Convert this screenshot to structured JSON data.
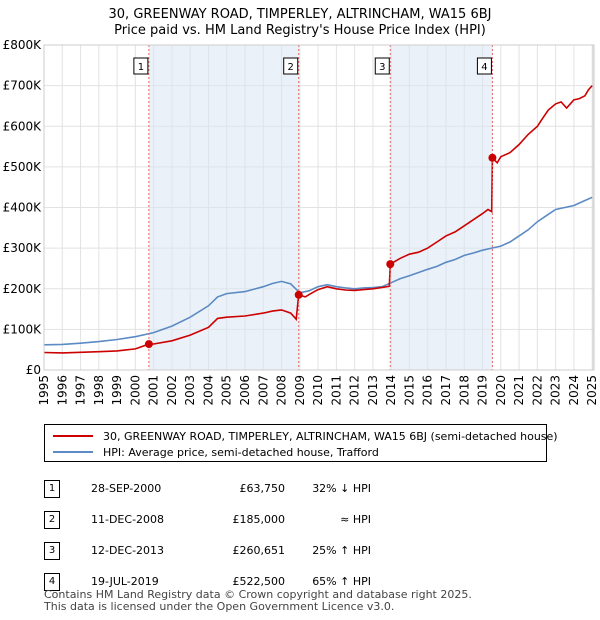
{
  "chart_data": {
    "type": "line",
    "title": "30, GREENWAY ROAD, TIMPERLEY, ALTRINCHAM, WA15 6BJ",
    "subtitle": "Price paid vs. HM Land Registry's House Price Index (HPI)",
    "xlim": [
      1995,
      2025.1
    ],
    "ylim": [
      0,
      800000
    ],
    "y_ticks": [
      {
        "value": 0,
        "label": "£0"
      },
      {
        "value": 100000,
        "label": "£100K"
      },
      {
        "value": 200000,
        "label": "£200K"
      },
      {
        "value": 300000,
        "label": "£300K"
      },
      {
        "value": 400000,
        "label": "£400K"
      },
      {
        "value": 500000,
        "label": "£500K"
      },
      {
        "value": 600000,
        "label": "£600K"
      },
      {
        "value": 700000,
        "label": "£700K"
      },
      {
        "value": 800000,
        "label": "£800K"
      }
    ],
    "x_ticks": [
      "1995",
      "1996",
      "1997",
      "1998",
      "1999",
      "2000",
      "2001",
      "2002",
      "2003",
      "2004",
      "2005",
      "2006",
      "2007",
      "2008",
      "2009",
      "2010",
      "2011",
      "2012",
      "2013",
      "2014",
      "2015",
      "2016",
      "2017",
      "2018",
      "2019",
      "2020",
      "2021",
      "2022",
      "2023",
      "2024",
      "2025"
    ],
    "grid": true,
    "series": [
      {
        "name": "30, GREENWAY ROAD, TIMPERLEY, ALTRINCHAM, WA15 6BJ (semi-detached house)",
        "color": "#cc0000",
        "points": [
          [
            1995.0,
            43000
          ],
          [
            1996.0,
            42000
          ],
          [
            1997.0,
            43500
          ],
          [
            1998.0,
            45000
          ],
          [
            1999.0,
            47000
          ],
          [
            2000.0,
            52000
          ],
          [
            2000.74,
            63750
          ],
          [
            2001.0,
            64000
          ],
          [
            2002.0,
            72000
          ],
          [
            2003.0,
            86000
          ],
          [
            2004.0,
            105000
          ],
          [
            2004.5,
            127000
          ],
          [
            2005.0,
            130000
          ],
          [
            2006.0,
            133000
          ],
          [
            2007.0,
            140000
          ],
          [
            2007.5,
            145000
          ],
          [
            2008.0,
            148000
          ],
          [
            2008.5,
            140000
          ],
          [
            2008.8,
            125000
          ],
          [
            2008.94,
            185000
          ],
          [
            2009.3,
            180000
          ],
          [
            2009.6,
            188000
          ],
          [
            2010.0,
            198000
          ],
          [
            2010.5,
            205000
          ],
          [
            2011.0,
            200000
          ],
          [
            2011.5,
            197000
          ],
          [
            2012.0,
            196000
          ],
          [
            2012.5,
            198000
          ],
          [
            2013.0,
            200000
          ],
          [
            2013.5,
            203000
          ],
          [
            2013.9,
            206000
          ],
          [
            2013.95,
            260651
          ],
          [
            2014.5,
            275000
          ],
          [
            2015.0,
            285000
          ],
          [
            2015.5,
            290000
          ],
          [
            2016.0,
            300000
          ],
          [
            2016.5,
            315000
          ],
          [
            2017.0,
            330000
          ],
          [
            2017.5,
            340000
          ],
          [
            2018.0,
            355000
          ],
          [
            2018.5,
            370000
          ],
          [
            2019.0,
            385000
          ],
          [
            2019.3,
            395000
          ],
          [
            2019.5,
            390000
          ],
          [
            2019.54,
            522500
          ],
          [
            2019.8,
            510000
          ],
          [
            2020.0,
            525000
          ],
          [
            2020.5,
            535000
          ],
          [
            2021.0,
            555000
          ],
          [
            2021.5,
            580000
          ],
          [
            2022.0,
            600000
          ],
          [
            2022.3,
            620000
          ],
          [
            2022.6,
            640000
          ],
          [
            2023.0,
            655000
          ],
          [
            2023.3,
            660000
          ],
          [
            2023.6,
            645000
          ],
          [
            2024.0,
            665000
          ],
          [
            2024.3,
            668000
          ],
          [
            2024.6,
            675000
          ],
          [
            2024.8,
            690000
          ],
          [
            2025.0,
            700000
          ]
        ]
      },
      {
        "name": "HPI: Average price, semi-detached house, Trafford",
        "color": "#5b8ac4",
        "points": [
          [
            1995.0,
            62000
          ],
          [
            1996.0,
            63000
          ],
          [
            1997.0,
            66000
          ],
          [
            1998.0,
            70000
          ],
          [
            1999.0,
            75000
          ],
          [
            2000.0,
            82000
          ],
          [
            2001.0,
            92000
          ],
          [
            2002.0,
            108000
          ],
          [
            2003.0,
            130000
          ],
          [
            2004.0,
            158000
          ],
          [
            2004.5,
            180000
          ],
          [
            2005.0,
            188000
          ],
          [
            2006.0,
            193000
          ],
          [
            2007.0,
            205000
          ],
          [
            2007.5,
            213000
          ],
          [
            2008.0,
            218000
          ],
          [
            2008.5,
            212000
          ],
          [
            2009.0,
            190000
          ],
          [
            2009.5,
            195000
          ],
          [
            2010.0,
            205000
          ],
          [
            2010.5,
            210000
          ],
          [
            2011.0,
            205000
          ],
          [
            2011.5,
            202000
          ],
          [
            2012.0,
            200000
          ],
          [
            2012.5,
            202000
          ],
          [
            2013.0,
            203000
          ],
          [
            2013.5,
            205000
          ],
          [
            2014.0,
            215000
          ],
          [
            2014.5,
            225000
          ],
          [
            2015.0,
            232000
          ],
          [
            2015.5,
            240000
          ],
          [
            2016.0,
            248000
          ],
          [
            2016.5,
            255000
          ],
          [
            2017.0,
            265000
          ],
          [
            2017.5,
            272000
          ],
          [
            2018.0,
            282000
          ],
          [
            2018.5,
            288000
          ],
          [
            2019.0,
            295000
          ],
          [
            2019.5,
            300000
          ],
          [
            2020.0,
            305000
          ],
          [
            2020.5,
            315000
          ],
          [
            2021.0,
            330000
          ],
          [
            2021.5,
            345000
          ],
          [
            2022.0,
            365000
          ],
          [
            2022.5,
            380000
          ],
          [
            2023.0,
            395000
          ],
          [
            2023.5,
            400000
          ],
          [
            2024.0,
            405000
          ],
          [
            2024.5,
            415000
          ],
          [
            2025.0,
            425000
          ]
        ]
      }
    ],
    "sales": [
      {
        "num": "1",
        "x": 2000.74,
        "price": 63750
      },
      {
        "num": "2",
        "x": 2008.94,
        "price": 185000
      },
      {
        "num": "3",
        "x": 2013.95,
        "price": 260651
      },
      {
        "num": "4",
        "x": 2019.54,
        "price": 522500
      }
    ]
  },
  "legend": {
    "property": "30, GREENWAY ROAD, TIMPERLEY, ALTRINCHAM, WA15 6BJ (semi-detached house)",
    "hpi": "HPI: Average price, semi-detached house, Trafford",
    "property_color": "#cc0000",
    "hpi_color": "#5b8ac4"
  },
  "transactions": [
    {
      "num": "1",
      "date": "28-SEP-2000",
      "price": "£63,750",
      "hpi": "32% ↓ HPI"
    },
    {
      "num": "2",
      "date": "11-DEC-2008",
      "price": "£185,000",
      "hpi": "≈ HPI"
    },
    {
      "num": "3",
      "date": "12-DEC-2013",
      "price": "£260,651",
      "hpi": "25% ↑ HPI"
    },
    {
      "num": "4",
      "date": "19-JUL-2019",
      "price": "£522,500",
      "hpi": "65% ↑ HPI"
    }
  ],
  "footer": {
    "line1": "Contains HM Land Registry data © Crown copyright and database right 2025.",
    "line2": "This data is licensed under the Open Government Licence v3.0."
  }
}
